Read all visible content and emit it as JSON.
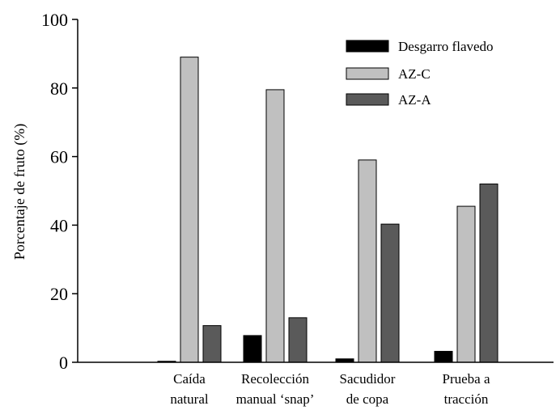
{
  "chart_data": {
    "type": "bar",
    "ylabel": "Porcentaje de fruto (%)",
    "ylim": [
      0,
      100
    ],
    "yticks": [
      "0",
      "20",
      "40",
      "60",
      "80",
      "100"
    ],
    "categories": [
      [
        "Caída",
        "natural"
      ],
      [
        "Recolección",
        "manual ‘snap’"
      ],
      [
        "Sacudidor",
        "de copa"
      ],
      [
        "Prueba a",
        "tracción"
      ]
    ],
    "series": [
      {
        "name": "Desgarro flavedo",
        "color": "#000000",
        "values": [
          0.3,
          7.8,
          1.0,
          3.2
        ]
      },
      {
        "name": "AZ-C",
        "color": "#c0c0c0",
        "values": [
          89,
          79.5,
          59,
          45.5
        ]
      },
      {
        "name": "AZ-A",
        "color": "#5a5a5a",
        "values": [
          10.7,
          13,
          40.3,
          52
        ]
      }
    ],
    "legend_position": "top-right",
    "grid": false
  }
}
